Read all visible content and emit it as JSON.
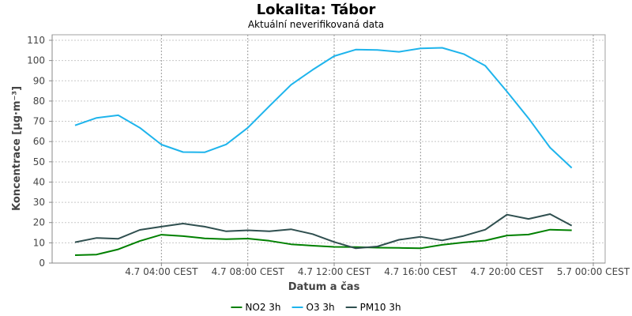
{
  "chart_data": {
    "type": "line",
    "title": "Lokalita: Tábor",
    "subtitle": "Aktuální neverifikovaná data",
    "xlabel": "Datum a čas",
    "ylabel": "Koncentrace [µg·m⁻³]",
    "ylim": [
      0,
      110
    ],
    "yticks": [
      0,
      10,
      20,
      30,
      40,
      50,
      60,
      70,
      80,
      90,
      100,
      110
    ],
    "xlim": [
      0,
      24
    ],
    "xticks": [
      {
        "value": 4,
        "label": "4.7 04:00 CEST"
      },
      {
        "value": 8,
        "label": "4.7 08:00 CEST"
      },
      {
        "value": 12,
        "label": "4.7 12:00 CEST"
      },
      {
        "value": 16,
        "label": "4.7 16:00 CEST"
      },
      {
        "value": 20,
        "label": "4.7 20:00 CEST"
      },
      {
        "value": 24,
        "label": "5.7 00:00 CEST"
      }
    ],
    "x": [
      0,
      1,
      2,
      3,
      4,
      5,
      6,
      7,
      8,
      9,
      10,
      11,
      12,
      13,
      14,
      15,
      16,
      17,
      18,
      19,
      20,
      21,
      22,
      23,
      24
    ],
    "grid": true,
    "legend_position": "bottom",
    "series": [
      {
        "name": "NO2 3h",
        "color": "#008000",
        "values": [
          3.9,
          4.2,
          6.8,
          10.9,
          14.0,
          13.3,
          12.2,
          11.8,
          12.1,
          11.0,
          9.3,
          8.6,
          8.0,
          7.9,
          7.6,
          7.5,
          7.3,
          9.0,
          10.2,
          11.1,
          13.6,
          14.1,
          16.5,
          16.2,
          null
        ]
      },
      {
        "name": "O3 3h",
        "color": "#1EB4EC",
        "values": [
          68.0,
          71.7,
          73.0,
          66.8,
          58.5,
          54.8,
          54.7,
          58.6,
          66.8,
          77.5,
          88.0,
          95.4,
          102.2,
          105.4,
          105.2,
          104.3,
          106.0,
          106.3,
          103.2,
          97.4,
          84.7,
          71.5,
          57.0,
          47.0,
          null
        ]
      },
      {
        "name": "PM10 3h",
        "color": "#2F4F4F",
        "values": [
          10.3,
          12.4,
          12.0,
          16.4,
          18.0,
          19.5,
          18.0,
          15.7,
          16.2,
          15.7,
          16.7,
          14.3,
          10.4,
          7.3,
          8.2,
          11.5,
          13.0,
          11.2,
          13.4,
          16.5,
          23.9,
          21.8,
          24.2,
          18.5,
          null
        ]
      }
    ]
  }
}
